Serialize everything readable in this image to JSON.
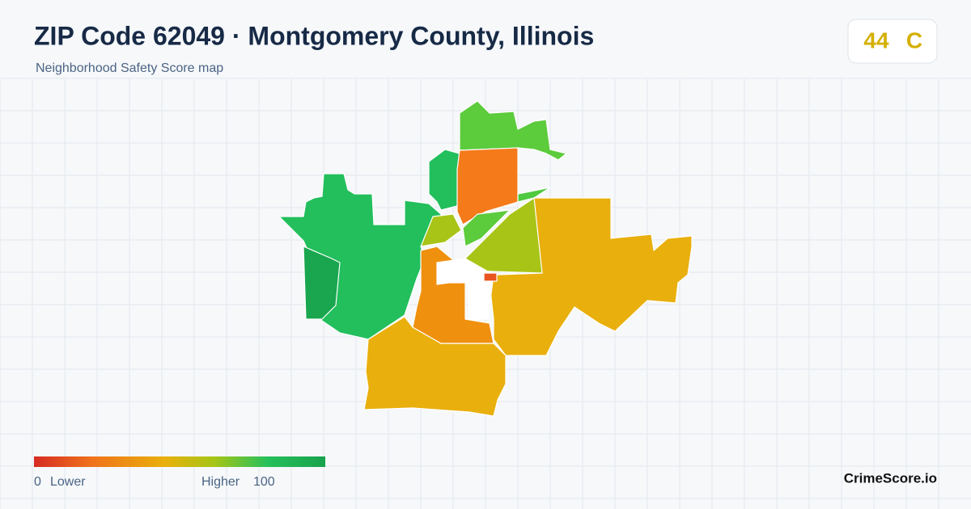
{
  "header": {
    "title": "ZIP Code 62049 · Montgomery County, Illinois",
    "subtitle": "Neighborhood Safety Score map"
  },
  "score": {
    "value": 44,
    "grade": "C"
  },
  "legend": {
    "min": 0,
    "min_label": "Lower",
    "max_label": "Higher",
    "max": 100
  },
  "footer": {
    "brand": "CrimeScore.io"
  }
}
